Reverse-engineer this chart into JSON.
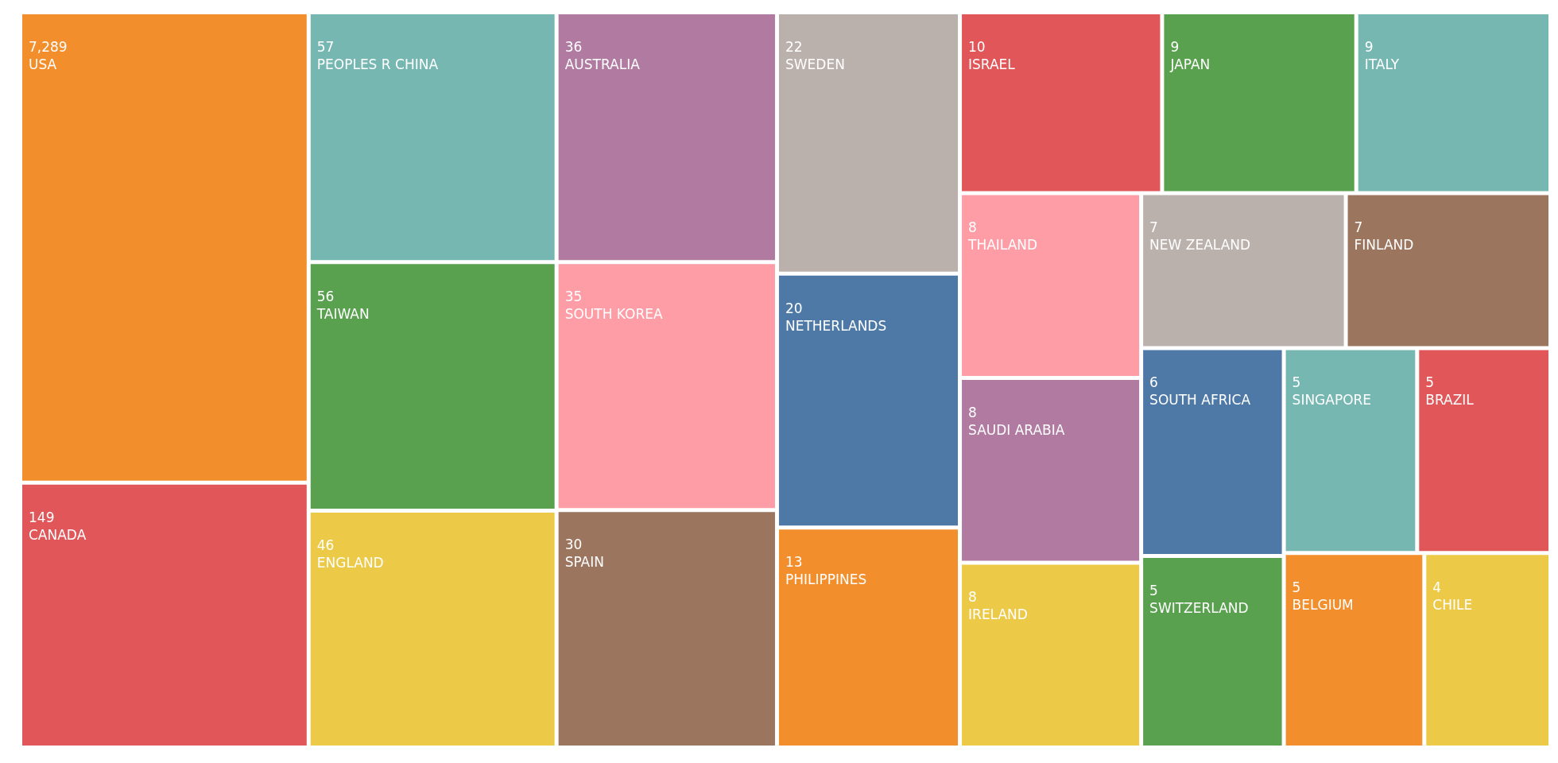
{
  "chart_data": {
    "type": "other",
    "categories": [
      "USA",
      "CANADA",
      "PEOPLES R CHINA",
      "TAIWAN",
      "ENGLAND",
      "AUSTRALIA",
      "SOUTH KOREA",
      "SPAIN",
      "SWEDEN",
      "NETHERLANDS",
      "PHILIPPINES",
      "ISRAEL",
      "ITALY",
      "JAPAN",
      "IRELAND",
      "SAUDI ARABIA",
      "THAILAND",
      "FINLAND",
      "NEW ZEALAND",
      "SOUTH AFRICA",
      "BELGIUM",
      "BRAZIL",
      "SINGAPORE",
      "SWITZERLAND",
      "CHILE"
    ],
    "values": [
      7289,
      149,
      57,
      56,
      46,
      36,
      35,
      30,
      22,
      20,
      13,
      10,
      9,
      9,
      8,
      8,
      8,
      7,
      7,
      6,
      5,
      5,
      5,
      5,
      4
    ],
    "value_labels": [
      "7,289",
      "149",
      "57",
      "56",
      "46",
      "36",
      "35",
      "30",
      "22",
      "20",
      "13",
      "10",
      "9",
      "9",
      "8",
      "8",
      "8",
      "7",
      "7",
      "6",
      "5",
      "5",
      "5",
      "5",
      "4"
    ],
    "colors": [
      "#f28e2b",
      "#e15759",
      "#76b7b2",
      "#59a14f",
      "#edc948",
      "#b07aa1",
      "#ff9da7",
      "#9c755f",
      "#bab0ac",
      "#4e79a7",
      "#f28e2b",
      "#e15759",
      "#76b7b2",
      "#59a14f",
      "#edc948",
      "#b07aa1",
      "#ff9da7",
      "#9c755f",
      "#bab0ac",
      "#4e79a7",
      "#f28e2b",
      "#e15759",
      "#76b7b2",
      "#59a14f",
      "#edc948"
    ]
  }
}
